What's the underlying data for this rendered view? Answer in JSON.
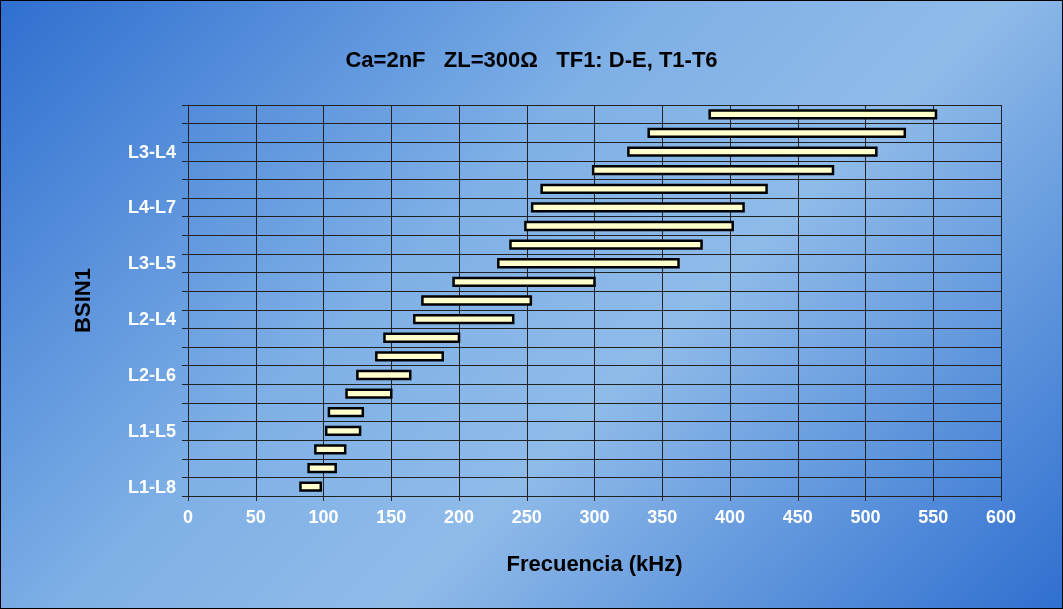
{
  "chart_data": {
    "type": "bar",
    "orientation": "horizontal",
    "title": "Ca=2nF   ZL=300Ω   TF1: D-E, T1-T6",
    "xlabel": "Frecuencia (kHz)",
    "ylabel": "BSIN1",
    "categories": [
      null,
      null,
      "L3-L4",
      null,
      null,
      "L4-L7",
      null,
      null,
      "L3-L5",
      null,
      null,
      "L2-L4",
      null,
      null,
      "L2-L6",
      null,
      null,
      "L1-L5",
      null,
      null,
      "L1-L8"
    ],
    "base": [
      385,
      340,
      325,
      299,
      261,
      254,
      249,
      238,
      229,
      196,
      173,
      167,
      145,
      139,
      125,
      117,
      104,
      102,
      94,
      89,
      83
    ],
    "values": [
      167,
      189,
      183,
      177,
      166,
      156,
      153,
      141,
      133,
      104,
      80,
      73,
      55,
      49,
      39,
      33,
      25,
      25,
      22,
      20,
      15
    ],
    "color": "#ffffcc",
    "xlim": [
      0,
      600
    ],
    "xticks": [
      0,
      50,
      100,
      150,
      200,
      250,
      300,
      350,
      400,
      450,
      500,
      550,
      600
    ],
    "grid": true
  }
}
